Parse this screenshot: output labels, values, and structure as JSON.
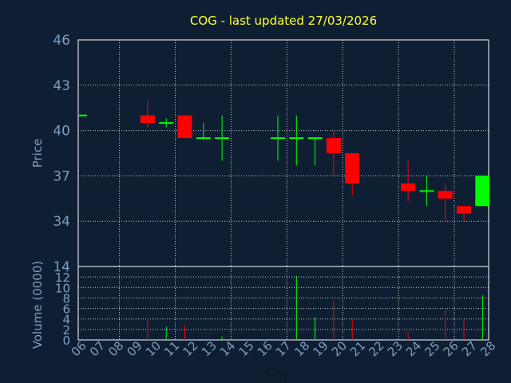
{
  "chart_data": {
    "type": "candlestick",
    "title": "COG - last updated 27/03/2026",
    "xlabel": "Day",
    "price_panel": {
      "ylabel": "Price",
      "ylim": [
        31,
        46
      ],
      "yticks": [
        46,
        43,
        40,
        37,
        34
      ]
    },
    "volume_panel": {
      "ylabel": "Volume (0000)",
      "ylim": [
        0,
        14
      ],
      "yticks": [
        14,
        12,
        10,
        8,
        6,
        4,
        2,
        0
      ]
    },
    "x_ticks": [
      "06",
      "07",
      "08",
      "09",
      "10",
      "11",
      "12",
      "13",
      "14",
      "15",
      "16",
      "17",
      "18",
      "19",
      "20",
      "21",
      "22",
      "23",
      "24",
      "25",
      "26",
      "27",
      "28"
    ],
    "grid": true,
    "colors": {
      "up": "#00ff00",
      "down": "#ff0000",
      "grid": "#ffffff",
      "axis": "#ffffff",
      "title": "#ffff33",
      "label": "#7d9ec0",
      "background": "#0f1f33"
    },
    "candles": [
      {
        "day": "06",
        "open": 41.0,
        "high": 41.0,
        "low": 41.0,
        "close": 41.0,
        "volume": 0.0
      },
      {
        "day": "09",
        "open": 41.0,
        "high": 42.0,
        "low": 40.2,
        "close": 40.5,
        "volume": 3.8
      },
      {
        "day": "10",
        "open": 40.5,
        "high": 40.8,
        "low": 40.2,
        "close": 40.5,
        "volume": 2.5
      },
      {
        "day": "11",
        "open": 41.0,
        "high": 41.0,
        "low": 39.5,
        "close": 39.5,
        "volume": 2.8
      },
      {
        "day": "12",
        "open": 39.5,
        "high": 40.5,
        "low": 39.5,
        "close": 39.5,
        "volume": 0.0
      },
      {
        "day": "13",
        "open": 39.5,
        "high": 41.0,
        "low": 38.0,
        "close": 39.5,
        "volume": 0.7
      },
      {
        "day": "16",
        "open": 39.5,
        "high": 41.0,
        "low": 38.0,
        "close": 39.5,
        "volume": 0.0
      },
      {
        "day": "17",
        "open": 39.5,
        "high": 41.0,
        "low": 37.7,
        "close": 39.5,
        "volume": 12.2
      },
      {
        "day": "18",
        "open": 39.5,
        "high": 39.5,
        "low": 37.7,
        "close": 39.5,
        "volume": 4.3
      },
      {
        "day": "19",
        "open": 39.5,
        "high": 40.0,
        "low": 37.0,
        "close": 38.5,
        "volume": 7.5
      },
      {
        "day": "20",
        "open": 38.5,
        "high": 38.5,
        "low": 35.7,
        "close": 36.5,
        "volume": 4.0
      },
      {
        "day": "23",
        "open": 36.5,
        "high": 38.0,
        "low": 35.3,
        "close": 36.0,
        "volume": 1.4
      },
      {
        "day": "24",
        "open": 36.0,
        "high": 37.0,
        "low": 35.0,
        "close": 36.0,
        "volume": 0.0
      },
      {
        "day": "25",
        "open": 36.0,
        "high": 36.5,
        "low": 34.0,
        "close": 35.5,
        "volume": 6.0
      },
      {
        "day": "26",
        "open": 35.0,
        "high": 35.0,
        "low": 34.0,
        "close": 34.5,
        "volume": 3.8
      },
      {
        "day": "27",
        "open": 35.0,
        "high": 37.0,
        "low": 35.0,
        "close": 37.0,
        "volume": 8.5
      }
    ]
  }
}
